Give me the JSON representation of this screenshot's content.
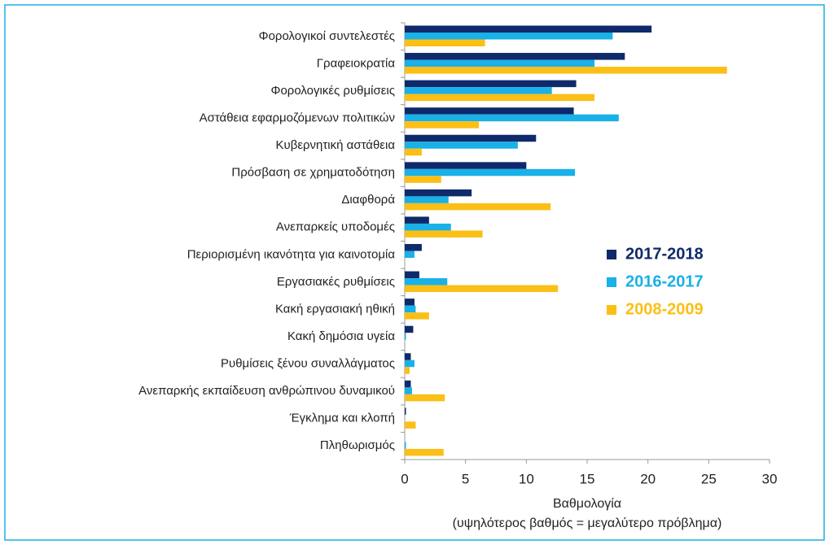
{
  "chart_data": {
    "type": "hbar",
    "categories": [
      "Φορολογικοί συντελεστές",
      "Γραφειοκρατία",
      "Φορολογικές ρυθμίσεις",
      "Αστάθεια εφαρμοζόμενων πολιτικών",
      "Κυβερνητική αστάθεια",
      "Πρόσβαση σε χρηματοδότηση",
      "Διαφθορά",
      "Ανεπαρκείς υποδομές",
      "Περιορισμένη ικανότητα για καινοτομία",
      "Εργασιακές ρυθμίσεις",
      "Κακή εργασιακή ηθική",
      "Κακή δημόσια υγεία",
      "Ρυθμίσεις ξένου συναλλάγματος",
      "Ανεπαρκής εκπαίδευση ανθρώπινου δυναμικού",
      "Έγκλημα και κλοπή",
      "Πληθωρισμός"
    ],
    "series": [
      {
        "name": "2017-2018",
        "color": "#0f2a6b",
        "values": [
          20.3,
          18.1,
          14.1,
          13.9,
          10.8,
          10.0,
          5.5,
          2.0,
          1.4,
          1.2,
          0.8,
          0.7,
          0.5,
          0.5,
          0.1,
          0
        ]
      },
      {
        "name": "2016-2017",
        "color": "#1ab0e8",
        "values": [
          17.1,
          15.6,
          12.1,
          17.6,
          9.3,
          14.0,
          3.6,
          3.8,
          0.8,
          3.5,
          0.9,
          0.1,
          0.8,
          0.6,
          0,
          0.1
        ]
      },
      {
        "name": "2008-2009",
        "color": "#fbbf16",
        "values": [
          6.6,
          26.5,
          15.6,
          6.1,
          1.4,
          3.0,
          12.0,
          6.4,
          0,
          12.6,
          2.0,
          0,
          0.4,
          3.3,
          0.9,
          3.2
        ]
      }
    ],
    "xlim": [
      0,
      30
    ],
    "xticks": [
      0,
      5,
      10,
      15,
      20,
      25,
      30
    ],
    "xlabel": [
      "Βαθμολογία",
      "(υψηλότερος βαθμός = μεγαλύτερο πρόβλημα)"
    ],
    "legend": "right"
  }
}
